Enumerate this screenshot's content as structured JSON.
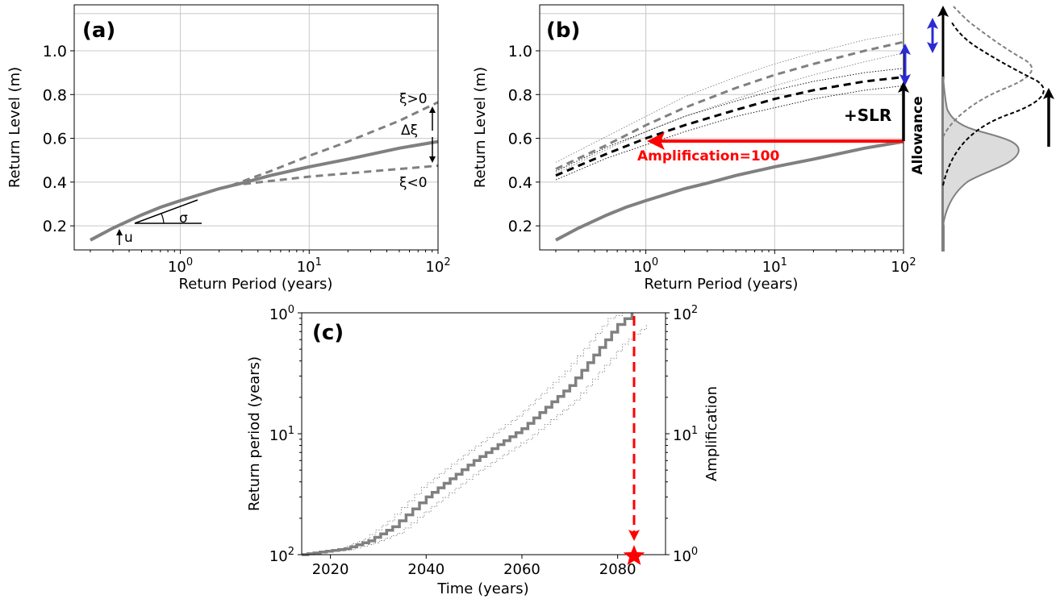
{
  "chart_data": [
    {
      "id": "a",
      "type": "line",
      "panel_label": "(a)",
      "xlabel": "Return Period (years)",
      "ylabel": "Return Level (m)",
      "xscale": "log",
      "xlim": [
        0.15,
        100
      ],
      "ylim": [
        0.09,
        1.21
      ],
      "grid": true,
      "xticks": [
        {
          "value": 1,
          "label": "10^0"
        },
        {
          "value": 10,
          "label": "10^1"
        },
        {
          "value": 100,
          "label": "10^2"
        }
      ],
      "yticks": [
        0.2,
        0.4,
        0.6,
        0.8,
        1.0
      ],
      "series": [
        {
          "style": "solid",
          "color": "#808080",
          "x": [
            0.2,
            0.3,
            0.5,
            0.7,
            1,
            2,
            3,
            5,
            10,
            20,
            50,
            100
          ],
          "y": [
            0.135,
            0.19,
            0.25,
            0.285,
            0.315,
            0.37,
            0.395,
            0.43,
            0.47,
            0.505,
            0.555,
            0.585
          ]
        },
        {
          "style": "dashed",
          "color": "#808080",
          "x": [
            2.5,
            5,
            10,
            20,
            50,
            100
          ],
          "y": [
            0.385,
            0.45,
            0.52,
            0.585,
            0.68,
            0.765
          ]
        },
        {
          "style": "dashed",
          "color": "#808080",
          "x": [
            2.5,
            5,
            10,
            20,
            50,
            100
          ],
          "y": [
            0.385,
            0.405,
            0.425,
            0.44,
            0.46,
            0.475
          ]
        }
      ],
      "annotations": {
        "xi_pos": "ξ>0",
        "xi_neg": "ξ<0",
        "delta_xi": "Δξ",
        "sigma": "σ",
        "u": "u"
      }
    },
    {
      "id": "b",
      "type": "line",
      "panel_label": "(b)",
      "xlabel": "Return Period (years)",
      "ylabel": "Return Level (m)",
      "xscale": "log",
      "xlim": [
        0.15,
        100
      ],
      "ylim": [
        0.09,
        1.21
      ],
      "grid": true,
      "xticks": [
        {
          "value": 1,
          "label": "10^0"
        },
        {
          "value": 10,
          "label": "10^1"
        },
        {
          "value": 100,
          "label": "10^2"
        }
      ],
      "yticks": [
        0.2,
        0.4,
        0.6,
        0.8,
        1.0
      ],
      "series": [
        {
          "style": "solid",
          "color": "#808080",
          "x": [
            0.2,
            0.3,
            0.5,
            0.7,
            1,
            2,
            3,
            5,
            10,
            20,
            50,
            100
          ],
          "y": [
            0.135,
            0.19,
            0.25,
            0.285,
            0.315,
            0.37,
            0.395,
            0.43,
            0.47,
            0.505,
            0.555,
            0.585
          ]
        },
        {
          "style": "dashed",
          "color": "#808080",
          "x": [
            0.2,
            0.5,
            1,
            2,
            5,
            10,
            20,
            50,
            100
          ],
          "y": [
            0.46,
            0.57,
            0.66,
            0.74,
            0.83,
            0.89,
            0.94,
            1.0,
            1.04
          ]
        },
        {
          "style": "dashed",
          "color": "#000000",
          "x": [
            0.2,
            0.5,
            1,
            2,
            5,
            10,
            20,
            50,
            100
          ],
          "y": [
            0.43,
            0.53,
            0.6,
            0.66,
            0.73,
            0.78,
            0.82,
            0.86,
            0.88
          ]
        },
        {
          "style": "dotted",
          "color": "#808080",
          "x": [
            0.2,
            0.5,
            1,
            2,
            5,
            10,
            20,
            50,
            100
          ],
          "y": [
            0.49,
            0.61,
            0.7,
            0.79,
            0.88,
            0.94,
            0.99,
            1.05,
            1.08
          ]
        },
        {
          "style": "dotted",
          "color": "#808080",
          "x": [
            0.2,
            0.5,
            1,
            2,
            5,
            10,
            20,
            50,
            100
          ],
          "y": [
            0.44,
            0.55,
            0.63,
            0.7,
            0.78,
            0.84,
            0.89,
            0.95,
            0.99
          ]
        },
        {
          "style": "dotted",
          "color": "#000000",
          "x": [
            0.2,
            0.5,
            1,
            2,
            5,
            10,
            20,
            50,
            100
          ],
          "y": [
            0.45,
            0.56,
            0.63,
            0.7,
            0.77,
            0.82,
            0.86,
            0.9,
            0.92
          ]
        },
        {
          "style": "dotted",
          "color": "#000000",
          "x": [
            0.2,
            0.5,
            1,
            2,
            5,
            10,
            20,
            50,
            100
          ],
          "y": [
            0.41,
            0.51,
            0.57,
            0.63,
            0.7,
            0.74,
            0.78,
            0.82,
            0.84
          ]
        }
      ],
      "annotations": {
        "amplification": "Amplification=100",
        "slr": "+SLR",
        "allowance": "Allowance",
        "amplification_color": "#ff0000",
        "uncertainty_arrow_color": "#2b2bd4"
      }
    },
    {
      "id": "c",
      "type": "line",
      "panel_label": "(c)",
      "xlabel": "Time (years)",
      "ylabel": "Return period (years)",
      "ylabel_right": "Amplification",
      "xlim": [
        2014,
        2090
      ],
      "xticks": [
        2020,
        2040,
        2060,
        2080
      ],
      "yscale": "log",
      "yticks_left": [
        {
          "value": 1,
          "label": "10^2"
        },
        {
          "value": 10,
          "label": "10^1"
        },
        {
          "value": 100,
          "label": "10^0"
        }
      ],
      "yticks_right": [
        {
          "value": 1,
          "label": "10^0"
        },
        {
          "value": 10,
          "label": "10^1"
        },
        {
          "value": 100,
          "label": "10^2"
        }
      ],
      "grid": false,
      "series": [
        {
          "style": "solid",
          "color": "#808080",
          "x": [
            2014,
            2023,
            2028,
            2033,
            2040,
            2050,
            2060,
            2070,
            2080,
            2083
          ],
          "y": [
            1,
            1.12,
            1.3,
            1.7,
            3,
            6,
            11,
            25,
            80,
            100
          ]
        },
        {
          "style": "dotted",
          "color": "#808080",
          "x": [
            2014,
            2022,
            2027,
            2032,
            2039,
            2049,
            2059,
            2069,
            2078,
            2081
          ],
          "y": [
            1,
            1.12,
            1.35,
            1.9,
            3.6,
            7.3,
            14,
            33,
            90,
            100
          ]
        },
        {
          "style": "dotted",
          "color": "#808080",
          "x": [
            2014,
            2024,
            2029,
            2034,
            2041,
            2051,
            2061,
            2071,
            2081,
            2086
          ],
          "y": [
            1,
            1.1,
            1.25,
            1.5,
            2.5,
            5,
            9,
            19,
            55,
            80
          ]
        }
      ],
      "marker": {
        "year": 2083,
        "amplification": 1,
        "color": "#ff0000"
      }
    }
  ]
}
